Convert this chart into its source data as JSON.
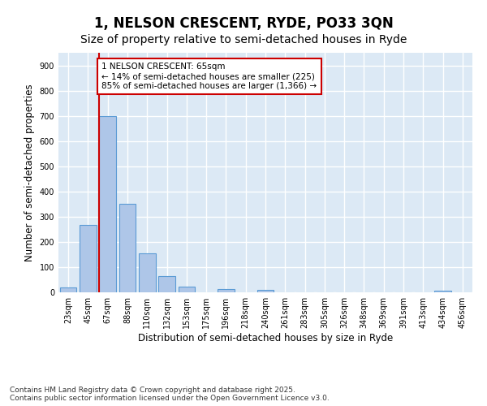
{
  "title": "1, NELSON CRESCENT, RYDE, PO33 3QN",
  "subtitle": "Size of property relative to semi-detached houses in Ryde",
  "xlabel": "Distribution of semi-detached houses by size in Ryde",
  "ylabel": "Number of semi-detached properties",
  "bin_labels": [
    "23sqm",
    "45sqm",
    "67sqm",
    "88sqm",
    "110sqm",
    "132sqm",
    "153sqm",
    "175sqm",
    "196sqm",
    "218sqm",
    "240sqm",
    "261sqm",
    "283sqm",
    "305sqm",
    "326sqm",
    "348sqm",
    "369sqm",
    "391sqm",
    "413sqm",
    "434sqm",
    "456sqm"
  ],
  "bar_values": [
    20,
    268,
    700,
    350,
    155,
    65,
    22,
    0,
    12,
    0,
    10,
    0,
    0,
    0,
    0,
    0,
    0,
    0,
    0,
    5,
    0
  ],
  "bar_color": "#aec6e8",
  "bar_edge_color": "#5b9bd5",
  "background_color": "#dce9f5",
  "grid_color": "#ffffff",
  "property_line_color": "#cc0000",
  "annotation_text": "1 NELSON CRESCENT: 65sqm\n← 14% of semi-detached houses are smaller (225)\n85% of semi-detached houses are larger (1,366) →",
  "annotation_box_color": "#cc0000",
  "ylim": [
    0,
    950
  ],
  "yticks": [
    0,
    100,
    200,
    300,
    400,
    500,
    600,
    700,
    800,
    900
  ],
  "footer": "Contains HM Land Registry data © Crown copyright and database right 2025.\nContains public sector information licensed under the Open Government Licence v3.0.",
  "title_fontsize": 12,
  "subtitle_fontsize": 10,
  "label_fontsize": 8.5,
  "tick_fontsize": 7,
  "footer_fontsize": 6.5,
  "annot_fontsize": 7.5
}
